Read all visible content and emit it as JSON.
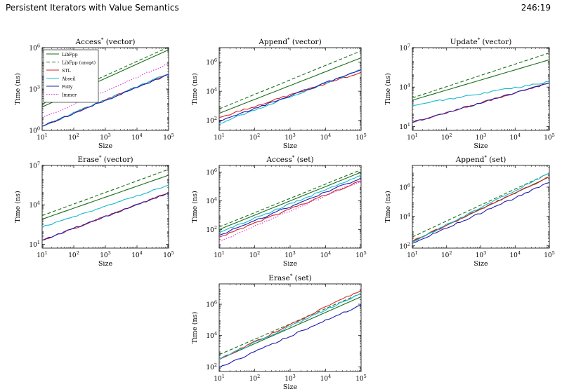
{
  "header": {
    "title": "Persistent Iterators with Value Semantics",
    "page": "246:19"
  },
  "colors": {
    "LibFpp": "#1a6e1a",
    "LibFpp (unopt)": "#1a6e1a",
    "STL": "#d62424",
    "Abseil": "#17b8cf",
    "Folly": "#1c1cb0",
    "Immer": "#d43ad4"
  },
  "legend": [
    "LibFpp",
    "LibFpp (unopt)",
    "STL",
    "Abseil",
    "Folly",
    "Immer"
  ],
  "chart_data": [
    {
      "type": "line",
      "title": "Access* (vector)",
      "xlabel": "Size",
      "ylabel": "Time (ns)",
      "xscale": "log",
      "yscale": "log",
      "xlim": [
        10,
        100000
      ],
      "ylim": [
        1,
        1000000
      ],
      "yticks": [
        "10^0",
        "10^3",
        "10^6"
      ],
      "xticks": [
        "10^1",
        "10^2",
        "10^3",
        "10^4",
        "10^5"
      ],
      "legend_position": "top-left",
      "series": [
        {
          "name": "LibFpp",
          "x": [
            10,
            100000
          ],
          "y": [
            50,
            700000
          ]
        },
        {
          "name": "LibFpp (unopt)",
          "x": [
            10,
            100000
          ],
          "y": [
            80,
            1100000
          ]
        },
        {
          "name": "STL",
          "x": [
            10,
            100000
          ],
          "y": [
            2,
            13000
          ]
        },
        {
          "name": "Abseil",
          "x": [
            10,
            100000
          ],
          "y": [
            2,
            13000
          ]
        },
        {
          "name": "Folly",
          "x": [
            10,
            100000
          ],
          "y": [
            2,
            11000
          ]
        },
        {
          "name": "Immer",
          "x": [
            10,
            100000
          ],
          "y": [
            8,
            70000
          ]
        }
      ]
    },
    {
      "type": "line",
      "title": "Append* (vector)",
      "xlabel": "Size",
      "ylabel": "Time (ns)",
      "xscale": "log",
      "yscale": "log",
      "xlim": [
        10,
        100000
      ],
      "ylim": [
        20,
        10000000
      ],
      "yticks": [
        "10^2",
        "10^4",
        "10^6"
      ],
      "xticks": [
        "10^1",
        "10^2",
        "10^3",
        "10^4",
        "10^5"
      ],
      "series": [
        {
          "name": "LibFpp",
          "x": [
            10,
            100000
          ],
          "y": [
            300,
            2000000
          ]
        },
        {
          "name": "LibFpp (unopt)",
          "x": [
            10,
            100000
          ],
          "y": [
            600,
            6000000
          ]
        },
        {
          "name": "STL",
          "x": [
            10,
            100000
          ],
          "y": [
            150,
            200000
          ]
        },
        {
          "name": "Abseil",
          "x": [
            10,
            100000
          ],
          "y": [
            60,
            300000
          ]
        },
        {
          "name": "Folly",
          "x": [
            10,
            100000
          ],
          "y": [
            80,
            300000
          ]
        }
      ]
    },
    {
      "type": "line",
      "title": "Update* (vector)",
      "xlabel": "Size",
      "ylabel": "Time (ns)",
      "xscale": "log",
      "yscale": "log",
      "xlim": [
        10,
        100000
      ],
      "ylim": [
        5,
        10000000
      ],
      "yticks": [
        "10^1",
        "10^4",
        "10^7"
      ],
      "xticks": [
        "10^1",
        "10^2",
        "10^3",
        "10^4",
        "10^5"
      ],
      "series": [
        {
          "name": "LibFpp",
          "x": [
            10,
            100000
          ],
          "y": [
            1000,
            1200000
          ]
        },
        {
          "name": "LibFpp (unopt)",
          "x": [
            10,
            100000
          ],
          "y": [
            1500,
            4000000
          ]
        },
        {
          "name": "STL",
          "x": [
            10,
            100000
          ],
          "y": [
            20,
            20000
          ]
        },
        {
          "name": "Abseil",
          "x": [
            10,
            100000
          ],
          "y": [
            400,
            25000
          ]
        },
        {
          "name": "Folly",
          "x": [
            10,
            100000
          ],
          "y": [
            20,
            20000
          ]
        }
      ]
    },
    {
      "type": "line",
      "title": "Erase* (vector)",
      "xlabel": "Size",
      "ylabel": "Time (ns)",
      "xscale": "log",
      "yscale": "log",
      "xlim": [
        10,
        100000
      ],
      "ylim": [
        5,
        10000000
      ],
      "yticks": [
        "10^1",
        "10^4",
        "10^7"
      ],
      "xticks": [
        "10^1",
        "10^2",
        "10^3",
        "10^4",
        "10^5"
      ],
      "series": [
        {
          "name": "LibFpp",
          "x": [
            10,
            100000
          ],
          "y": [
            800,
            1800000
          ]
        },
        {
          "name": "LibFpp (unopt)",
          "x": [
            10,
            100000
          ],
          "y": [
            1500,
            5000000
          ]
        },
        {
          "name": "STL",
          "x": [
            10,
            100000
          ],
          "y": [
            20,
            80000
          ]
        },
        {
          "name": "Abseil",
          "x": [
            10,
            100000
          ],
          "y": [
            200,
            300000
          ]
        },
        {
          "name": "Folly",
          "x": [
            10,
            100000
          ],
          "y": [
            20,
            80000
          ]
        }
      ]
    },
    {
      "type": "line",
      "title": "Access* (set)",
      "xlabel": "Size",
      "ylabel": "Time (ns)",
      "xscale": "log",
      "yscale": "log",
      "xlim": [
        10,
        100000
      ],
      "ylim": [
        5,
        3000000
      ],
      "yticks": [
        "10^2",
        "10^4",
        "10^6"
      ],
      "xticks": [
        "10^1",
        "10^2",
        "10^3",
        "10^4",
        "10^5"
      ],
      "series": [
        {
          "name": "LibFpp",
          "x": [
            10,
            100000
          ],
          "y": [
            100,
            1000000
          ]
        },
        {
          "name": "LibFpp (unopt)",
          "x": [
            10,
            100000
          ],
          "y": [
            150,
            1500000
          ]
        },
        {
          "name": "STL",
          "x": [
            10,
            100000
          ],
          "y": [
            30,
            250000
          ]
        },
        {
          "name": "Abseil",
          "x": [
            10,
            100000
          ],
          "y": [
            60,
            600000
          ]
        },
        {
          "name": "Folly",
          "x": [
            10,
            100000
          ],
          "y": [
            40,
            400000
          ]
        },
        {
          "name": "Immer",
          "x": [
            10,
            100000
          ],
          "y": [
            15,
            250000
          ]
        }
      ]
    },
    {
      "type": "line",
      "title": "Append* (set)",
      "xlabel": "Size",
      "ylabel": "Time (ns)",
      "xscale": "log",
      "yscale": "log",
      "xlim": [
        10,
        100000
      ],
      "ylim": [
        70,
        30000000
      ],
      "yticks": [
        "10^2",
        "10^4",
        "10^6"
      ],
      "xticks": [
        "10^1",
        "10^2",
        "10^3",
        "10^4",
        "10^5"
      ],
      "series": [
        {
          "name": "LibFpp",
          "x": [
            10,
            100000
          ],
          "y": [
            200,
            5000000
          ]
        },
        {
          "name": "LibFpp (unopt)",
          "x": [
            10,
            100000
          ],
          "y": [
            400,
            9000000
          ]
        },
        {
          "name": "STL",
          "x": [
            10,
            100000
          ],
          "y": [
            200,
            5000000
          ]
        },
        {
          "name": "Abseil",
          "x": [
            10,
            100000
          ],
          "y": [
            180,
            9000000
          ]
        },
        {
          "name": "Folly",
          "x": [
            10,
            100000
          ],
          "y": [
            150,
            2000000
          ]
        }
      ]
    },
    {
      "type": "line",
      "title": "Erase* (set)",
      "xlabel": "Size",
      "ylabel": "Time (ns)",
      "xscale": "log",
      "yscale": "log",
      "xlim": [
        10,
        100000
      ],
      "ylim": [
        50,
        20000000
      ],
      "yticks": [
        "10^2",
        "10^4",
        "10^6"
      ],
      "xticks": [
        "10^1",
        "10^2",
        "10^3",
        "10^4",
        "10^5"
      ],
      "series": [
        {
          "name": "LibFpp",
          "x": [
            10,
            100000
          ],
          "y": [
            300,
            3000000
          ]
        },
        {
          "name": "LibFpp (unopt)",
          "x": [
            10,
            100000
          ],
          "y": [
            600,
            5000000
          ]
        },
        {
          "name": "STL",
          "x": [
            10,
            100000
          ],
          "y": [
            300,
            8000000
          ]
        },
        {
          "name": "Abseil",
          "x": [
            10,
            100000
          ],
          "y": [
            300,
            5000000
          ]
        },
        {
          "name": "Folly",
          "x": [
            10,
            100000
          ],
          "y": [
            90,
            900000
          ]
        }
      ]
    }
  ]
}
